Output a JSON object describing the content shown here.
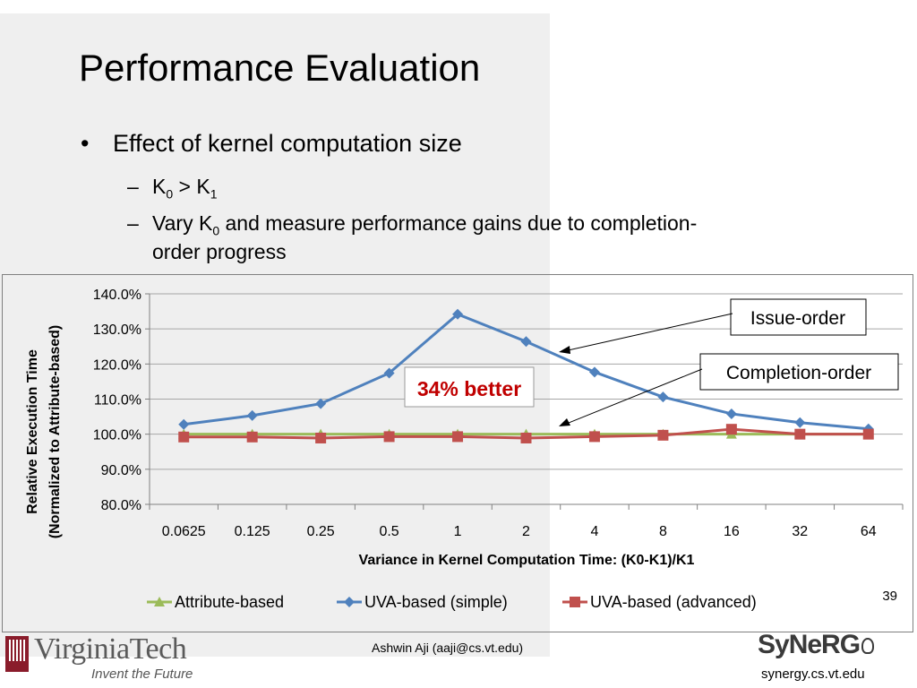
{
  "slide": {
    "title": "Performance Evaluation",
    "bullet": "Effect of kernel computation size",
    "sub1": {
      "k0": "K",
      "sub0": "0",
      "gt": " > K",
      "sub1": "1"
    },
    "sub2": {
      "a": "Vary K",
      "sub0": "0",
      "b": " and measure performance gains due to completion-",
      "c": "order progress"
    },
    "bullet_char": "•",
    "dash": "–",
    "page_number": "39"
  },
  "annotations": {
    "issue_order": "Issue-order",
    "completion_order": "Completion-order",
    "better": "34% better"
  },
  "footer": {
    "author": "Ashwin Aji (aaji@cs.vt.edu)",
    "vt_name_a": "Virginia",
    "vt_name_b": "Tech",
    "vt_tagline": "Invent the Future",
    "synergy_logo": "SyNeRG",
    "synergy_url": "synergy.cs.vt.edu"
  },
  "colors": {
    "attribute": "#9bbb59",
    "uva_simple": "#4f81bd",
    "uva_advanced": "#c0504d",
    "better_text": "#c00000"
  },
  "chart_data": {
    "type": "line",
    "xlabel": "Variance in Kernel Computation Time: (K0-K1)/K1",
    "ylabel_line1": "Relative Execution Time",
    "ylabel_line2": "(Normalized to Attribute-based)",
    "categories": [
      "0.0625",
      "0.125",
      "0.25",
      "0.5",
      "1",
      "2",
      "4",
      "8",
      "16",
      "32",
      "64"
    ],
    "ylim": [
      80,
      140
    ],
    "yticks": [
      "80.0%",
      "90.0%",
      "100.0%",
      "110.0%",
      "120.0%",
      "130.0%",
      "140.0%"
    ],
    "grid": true,
    "legend": "bottom",
    "series": [
      {
        "name": "Attribute-based",
        "values": [
          100,
          100,
          100,
          100,
          100,
          100,
          100,
          100,
          100,
          100,
          100
        ],
        "marker": "triangle"
      },
      {
        "name": "UVA-based (simple)",
        "values": [
          102.8,
          105.3,
          108.7,
          117.4,
          134.2,
          126.4,
          117.7,
          110.6,
          105.8,
          103.3,
          101.5
        ],
        "marker": "diamond"
      },
      {
        "name": "UVA-based (advanced)",
        "values": [
          99.2,
          99.2,
          98.9,
          99.3,
          99.3,
          98.9,
          99.3,
          99.7,
          101.4,
          100.0,
          100.0
        ],
        "marker": "square"
      }
    ]
  }
}
